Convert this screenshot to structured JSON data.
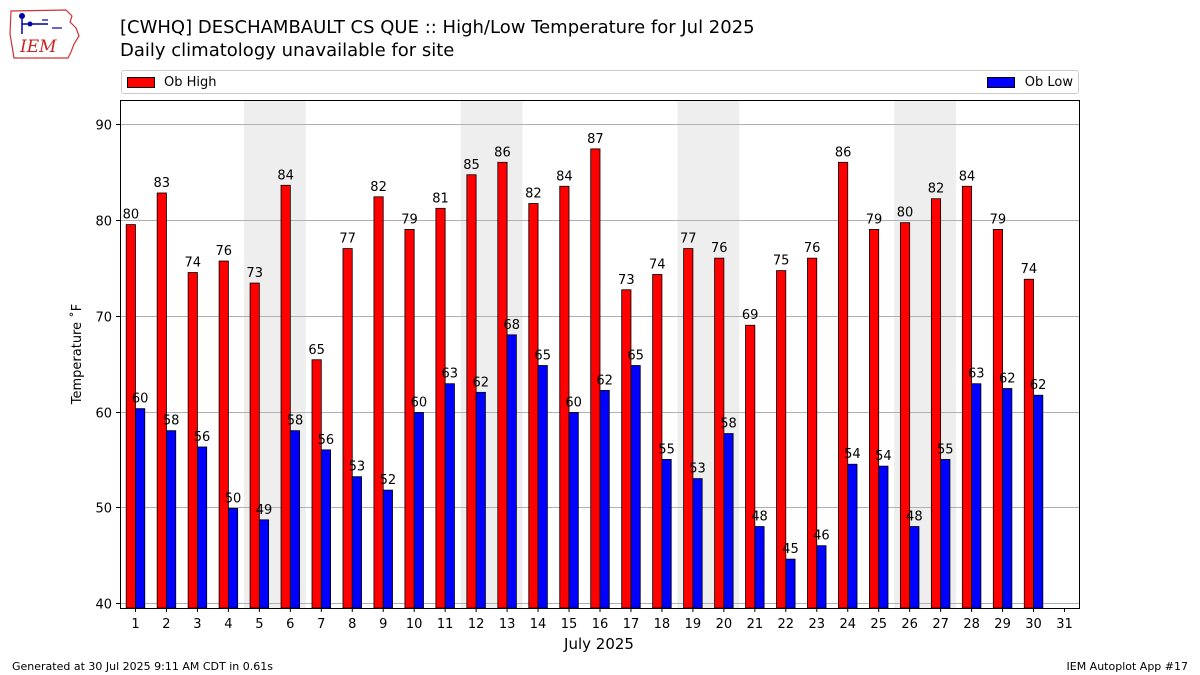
{
  "header": {
    "title_line1": "[CWHQ] DESCHAMBAULT CS  QUE :: High/Low Temperature for Jul 2025",
    "title_line2": "Daily climatology unavailable for site"
  },
  "logo": {
    "text": "IEM",
    "icon": "iem-iowa-logo"
  },
  "footer": {
    "generated": "Generated at 30 Jul 2025 9:11 AM CDT in 0.61s",
    "app": "IEM Autoplot App #17"
  },
  "colors": {
    "high": "#ff0000",
    "low": "#0000ff",
    "weekend": "#eeeeee",
    "grid": "#b0b0b0"
  },
  "chart_data": {
    "type": "bar",
    "title": "[CWHQ] DESCHAMBAULT CS  QUE :: High/Low Temperature for Jul 2025",
    "subtitle": "Daily climatology unavailable for site",
    "xlabel": "July 2025",
    "ylabel": "Temperature ˚F",
    "ylim": [
      39.5,
      92.5
    ],
    "yticks": [
      40,
      50,
      60,
      70,
      80,
      90
    ],
    "grid": true,
    "legend_position": "top",
    "categories": [
      "1",
      "2",
      "3",
      "4",
      "5",
      "6",
      "7",
      "8",
      "9",
      "10",
      "11",
      "12",
      "13",
      "14",
      "15",
      "16",
      "17",
      "18",
      "19",
      "20",
      "21",
      "22",
      "23",
      "24",
      "25",
      "26",
      "27",
      "28",
      "29",
      "30",
      "31"
    ],
    "weekend_shading": [
      [
        "5",
        "6"
      ],
      [
        "12",
        "13"
      ],
      [
        "19",
        "20"
      ],
      [
        "26",
        "27"
      ]
    ],
    "series": [
      {
        "name": "Ob High",
        "color": "#ff0000",
        "values": [
          79.5,
          82.8,
          74.5,
          75.7,
          73.4,
          83.6,
          65.4,
          77.0,
          82.4,
          79.0,
          81.2,
          84.7,
          86.0,
          81.7,
          83.5,
          87.4,
          72.7,
          74.3,
          77.0,
          76.0,
          69.0,
          74.7,
          76.0,
          86.0,
          79.0,
          79.7,
          82.2,
          83.5,
          79.0,
          73.8,
          null
        ],
        "labels": [
          "80",
          "83",
          "74",
          "76",
          "73",
          "84",
          "65",
          "77",
          "82",
          "79",
          "81",
          "85",
          "86",
          "82",
          "84",
          "87",
          "73",
          "74",
          "77",
          "76",
          "69",
          "75",
          "76",
          "86",
          "79",
          "80",
          "82",
          "84",
          "79",
          "74",
          ""
        ]
      },
      {
        "name": "Ob Low",
        "color": "#0000ff",
        "values": [
          60.3,
          58.0,
          56.3,
          49.9,
          48.7,
          58.0,
          56.0,
          53.2,
          51.8,
          59.9,
          62.9,
          62.0,
          68.0,
          64.8,
          59.9,
          62.2,
          64.8,
          55.0,
          53.0,
          57.7,
          48.0,
          44.6,
          46.0,
          54.5,
          54.3,
          48.0,
          55.0,
          62.9,
          62.4,
          61.7,
          null
        ],
        "labels": [
          "60",
          "58",
          "56",
          "50",
          "49",
          "58",
          "56",
          "53",
          "52",
          "60",
          "63",
          "62",
          "68",
          "65",
          "60",
          "62",
          "65",
          "55",
          "53",
          "58",
          "48",
          "45",
          "46",
          "54",
          "54",
          "48",
          "55",
          "63",
          "62",
          "62",
          ""
        ]
      }
    ]
  }
}
